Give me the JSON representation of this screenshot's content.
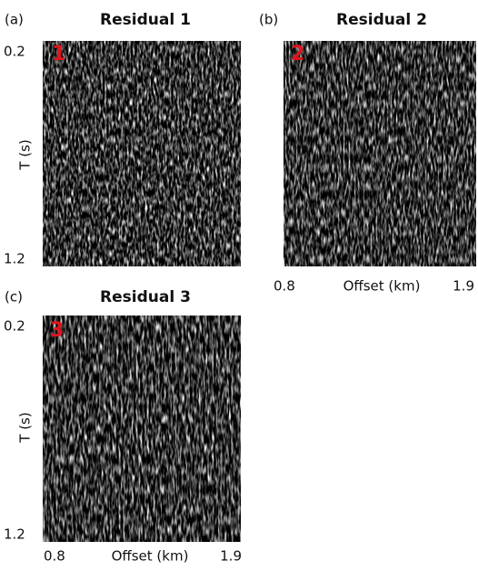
{
  "panels": [
    {
      "tag": "(a)",
      "title": "Residual 1",
      "badge": "1",
      "y_label": "T (s)",
      "y_top": "0.2",
      "y_bottom": "1.2"
    },
    {
      "tag": "(b)",
      "title": "Residual 2",
      "badge": "2",
      "x_label": "Offset (km)",
      "x_left": "0.8",
      "x_right": "1.9"
    },
    {
      "tag": "(c)",
      "title": "Residual 3",
      "badge": "3",
      "y_label": "T (s)",
      "y_top": "0.2",
      "y_bottom": "1.2",
      "x_label": "Offset (km)",
      "x_left": "0.8",
      "x_right": "1.9"
    }
  ]
}
